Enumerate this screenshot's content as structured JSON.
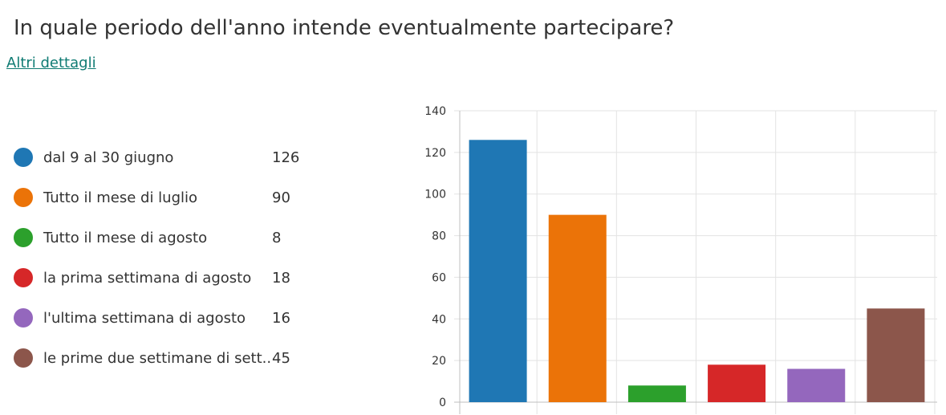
{
  "question": {
    "title": "In quale periodo dell'anno intende eventualmente partecipare?",
    "details_link": "Altri dettagli"
  },
  "legend": [
    {
      "label": "dal 9 al 30 giugno",
      "count": "126",
      "color": "#1f77b4"
    },
    {
      "label": "Tutto il mese di luglio",
      "count": "90",
      "color": "#eb7308"
    },
    {
      "label": "Tutto il mese di agosto",
      "count": "8",
      "color": "#2ca02c"
    },
    {
      "label": "la prima settimana di agosto",
      "count": "18",
      "color": "#d62728"
    },
    {
      "label": "l'ultima settimana di agosto",
      "count": "16",
      "color": "#9467bd"
    },
    {
      "label": "le prime due settimane di sett...",
      "count": "45",
      "color": "#8c564b"
    }
  ],
  "chart_data": {
    "type": "bar",
    "categories": [
      "dal 9 al 30 giugno",
      "Tutto il mese di luglio",
      "Tutto il mese di agosto",
      "la prima settimana di agosto",
      "l'ultima settimana di agosto",
      "le prime due settimane di sett..."
    ],
    "values": [
      126,
      90,
      8,
      18,
      16,
      45
    ],
    "colors": [
      "#1f77b4",
      "#eb7308",
      "#2ca02c",
      "#d62728",
      "#9467bd",
      "#8c564b"
    ],
    "ylim": [
      0,
      140
    ],
    "yticks": [
      "0",
      "20",
      "40",
      "60",
      "80",
      "100",
      "120",
      "140"
    ],
    "grid": true,
    "legend_placement": "left"
  }
}
